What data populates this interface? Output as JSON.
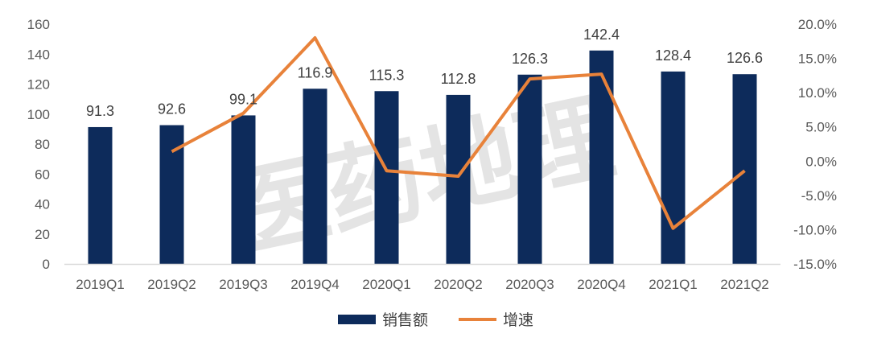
{
  "chart_data": {
    "type": "bar",
    "categories": [
      "2019Q1",
      "2019Q2",
      "2019Q3",
      "2019Q4",
      "2020Q1",
      "2020Q2",
      "2020Q3",
      "2020Q4",
      "2021Q1",
      "2021Q2"
    ],
    "series": [
      {
        "name": "销售额",
        "type": "bar",
        "axis": "left",
        "values": [
          91.3,
          92.6,
          99.1,
          116.9,
          115.3,
          112.8,
          126.3,
          142.4,
          128.4,
          126.6
        ],
        "labels": [
          "91.3",
          "92.6",
          "99.1",
          "116.9",
          "115.3",
          "112.8",
          "126.3",
          "142.4",
          "128.4",
          "126.6"
        ]
      },
      {
        "name": "增速",
        "type": "line",
        "axis": "right",
        "values": [
          null,
          1.4,
          7.0,
          18.0,
          -1.4,
          -2.2,
          12.0,
          12.7,
          -9.8,
          -1.4
        ]
      }
    ],
    "left_axis": {
      "ylim": [
        0,
        160
      ],
      "ticks": [
        "0",
        "20",
        "40",
        "60",
        "80",
        "100",
        "120",
        "140",
        "160"
      ],
      "tick_values": [
        0,
        20,
        40,
        60,
        80,
        100,
        120,
        140,
        160
      ]
    },
    "right_axis": {
      "ylim": [
        -15,
        20
      ],
      "ticks": [
        "-15.0%",
        "-10.0%",
        "-5.0%",
        "0.0%",
        "5.0%",
        "10.0%",
        "15.0%",
        "20.0%"
      ],
      "tick_values": [
        -15,
        -10,
        -5,
        0,
        5,
        10,
        15,
        20
      ]
    },
    "grid": false,
    "legend_position": "bottom",
    "colors": {
      "bar": "#0d2b5b",
      "line": "#e8823a",
      "axis": "#d9d9d9"
    }
  },
  "watermark": "医药地理"
}
